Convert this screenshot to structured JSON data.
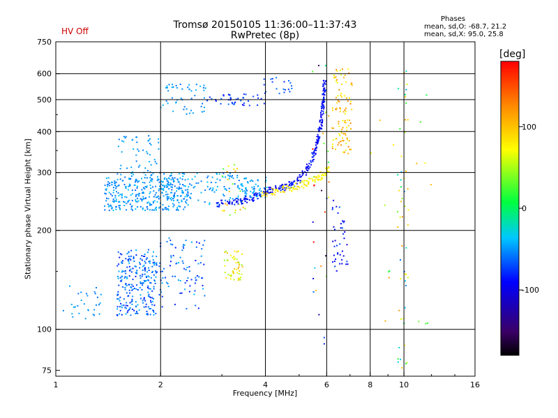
{
  "header": {
    "title_line1": "Tromsø 20150105 11:36:00–11:37:43",
    "title_line2": "RwPretec (8p)",
    "hv_status": "HV Off"
  },
  "stats": {
    "title": "Phases",
    "mean_o": "mean, sd,O: -68.7, 21.2",
    "mean_x": "mean, sd,X:  95.0, 25.8"
  },
  "colors": {
    "hv_status": "#cc0000",
    "colormap": [
      "#000000",
      "#3a0066",
      "#0000ff",
      "#00c8ff",
      "#00ff40",
      "#ffff00",
      "#ff8800",
      "#ff0000"
    ]
  },
  "chart_data": {
    "type": "scatter",
    "xlabel": "Frequency [MHz]",
    "ylabel": "Stationary phase Virtual Height [km]",
    "x_scale": "log",
    "y_scale": "log",
    "xlim": [
      1,
      16
    ],
    "ylim": [
      72,
      750
    ],
    "x_ticks": [
      1,
      2,
      4,
      6,
      8,
      10,
      16
    ],
    "x_tick_labels": [
      "1",
      "2",
      "4",
      "6",
      "8",
      "10",
      "16"
    ],
    "y_ticks": [
      75,
      100,
      200,
      300,
      400,
      500,
      600,
      750
    ],
    "y_tick_labels": [
      "75",
      "100",
      "200",
      "300",
      "400",
      "500",
      "600",
      "750"
    ],
    "x_gridlines": [
      2,
      4,
      6,
      8,
      10
    ],
    "y_gridlines": [
      100,
      200,
      300,
      400,
      500,
      600
    ],
    "grid": true,
    "colorbar": {
      "unit_label": "[deg]",
      "range": [
        -180,
        180
      ],
      "ticks": [
        100,
        0,
        -100
      ],
      "tick_labels": [
        "100",
        "0",
        "-100"
      ]
    },
    "clusters": [
      {
        "x": [
          1.05,
          1.35
        ],
        "y": [
          105,
          140
        ],
        "phase": [
          -60,
          -40
        ],
        "n": 30
      },
      {
        "x": [
          1.5,
          1.95
        ],
        "y": [
          110,
          175
        ],
        "phase": [
          -85,
          -40
        ],
        "n": 260
      },
      {
        "x": [
          1.95,
          2.7
        ],
        "y": [
          115,
          190
        ],
        "phase": [
          -85,
          -40
        ],
        "n": 90
      },
      {
        "x": [
          1.38,
          2.4
        ],
        "y": [
          230,
          290
        ],
        "phase": [
          -65,
          -35
        ],
        "n": 330
      },
      {
        "x": [
          1.5,
          2.0
        ],
        "y": [
          290,
          390
        ],
        "phase": [
          -60,
          -40
        ],
        "n": 60
      },
      {
        "x": [
          2.0,
          3.4
        ],
        "y": [
          240,
          300
        ],
        "phase": [
          -60,
          -35
        ],
        "n": 110
      },
      {
        "x": [
          2.0,
          2.7
        ],
        "y": [
          450,
          560
        ],
        "phase": [
          -60,
          -40
        ],
        "n": 50
      },
      {
        "x": [
          2.7,
          4.0
        ],
        "y": [
          480,
          520
        ],
        "phase": [
          -90,
          -60
        ],
        "n": 40
      },
      {
        "x": [
          3.05,
          3.45
        ],
        "y": [
          140,
          175
        ],
        "phase": [
          40,
          110
        ],
        "n": 50
      },
      {
        "x": [
          3.0,
          3.5
        ],
        "y": [
          215,
          320
        ],
        "phase": [
          20,
          120
        ],
        "n": 25
      },
      {
        "x": [
          3.4,
          4.1
        ],
        "y": [
          250,
          290
        ],
        "phase": [
          -60,
          -35
        ],
        "n": 60
      },
      {
        "x": [
          3.9,
          4.8
        ],
        "y": [
          520,
          590
        ],
        "phase": [
          -80,
          -55
        ],
        "n": 20
      },
      {
        "x": [
          5.4,
          6.1
        ],
        "y": [
          90,
          640
        ],
        "phase": [
          -180,
          180
        ],
        "n": 30
      },
      {
        "x": [
          6.2,
          7.1
        ],
        "y": [
          340,
          620
        ],
        "phase": [
          60,
          130
        ],
        "n": 100
      },
      {
        "x": [
          6.2,
          6.9
        ],
        "y": [
          150,
          250
        ],
        "phase": [
          -110,
          -60
        ],
        "n": 40
      },
      {
        "x": [
          9.6,
          10.3
        ],
        "y": [
          75,
          620
        ],
        "phase": [
          -60,
          120
        ],
        "n": 50
      },
      {
        "x": [
          8.0,
          12.0
        ],
        "y": [
          100,
          600
        ],
        "phase": [
          0,
          120
        ],
        "n": 20
      }
    ],
    "o_trace": {
      "x": [
        2.9,
        3.1,
        3.3,
        3.5,
        3.7,
        3.9,
        4.1,
        4.3,
        4.5,
        4.7,
        4.9,
        5.1,
        5.3,
        5.45,
        5.55,
        5.65,
        5.72,
        5.78,
        5.82,
        5.85,
        5.88,
        5.9,
        5.92
      ],
      "y": [
        240,
        242,
        245,
        248,
        252,
        258,
        265,
        268,
        270,
        275,
        280,
        292,
        310,
        330,
        350,
        375,
        400,
        425,
        450,
        480,
        510,
        540,
        570
      ],
      "phase": -90
    },
    "x_trace": {
      "x": [
        3.9,
        4.2,
        4.5,
        4.8,
        5.1,
        5.4,
        5.7,
        5.9,
        6.05
      ],
      "y": [
        258,
        262,
        266,
        270,
        276,
        282,
        290,
        298,
        305
      ],
      "phase": 80
    }
  }
}
